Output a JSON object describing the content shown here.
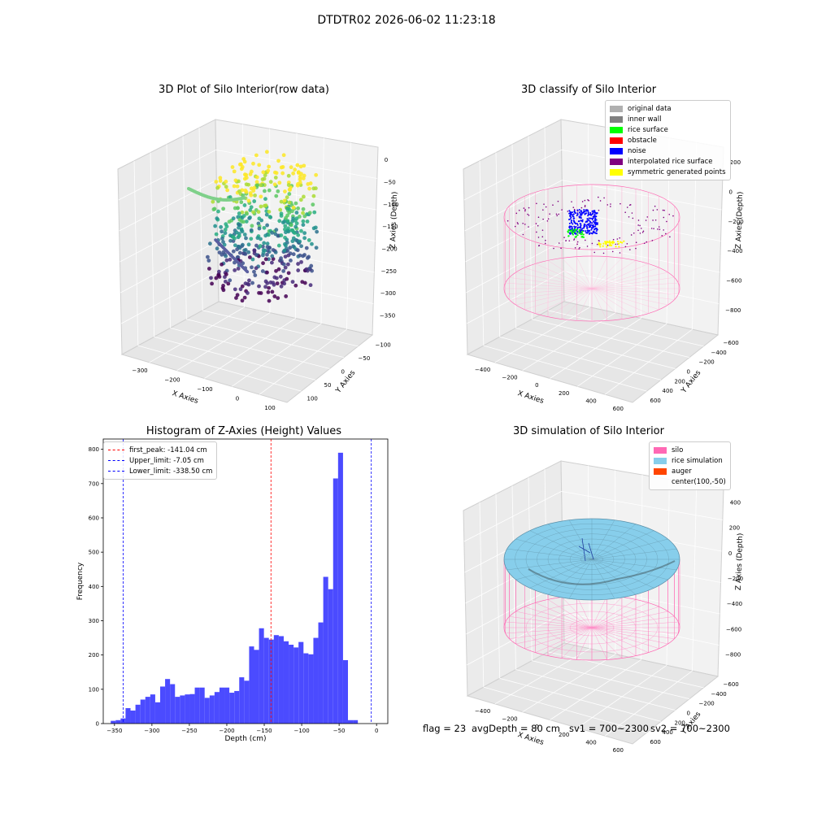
{
  "figure_title": "DTDTR02 2026-06-02 11:23:18",
  "footer": {
    "flag": "flag = 23",
    "avgDepth": "avgDepth = 80 cm",
    "sv1": "sv1 = 700~2300",
    "sv2": "sv2 = 700~2300"
  },
  "chart_data": [
    {
      "type": "scatter",
      "title": "3D Plot of Silo Interior(row data)",
      "xlabel": "X Axies",
      "ylabel": "Y Axies",
      "zlabel": "Z Axies (Depth)",
      "x_ticks": [
        "−300",
        "−200",
        "−100",
        "0",
        "100"
      ],
      "y_ticks": [
        "100",
        "50",
        "0",
        "−50",
        "−100"
      ],
      "z_ticks": [
        "0",
        "−50",
        "−100",
        "−150",
        "−200",
        "−250",
        "−300",
        "−350"
      ],
      "xlim": [
        -330,
        150
      ],
      "ylim": [
        -120,
        120
      ],
      "zlim": [
        -370,
        10
      ],
      "colormap": "viridis",
      "grid": true
    },
    {
      "type": "scatter",
      "title": "3D classify of Silo Interior",
      "xlabel": "X Axies",
      "ylabel": "Y Axies",
      "zlabel": "Z Axies (Depth)",
      "x_ticks": [
        "−400",
        "−200",
        "0",
        "200",
        "400",
        "600"
      ],
      "y_ticks": [
        "600",
        "400",
        "200",
        "0",
        "−200",
        "−400",
        "−600"
      ],
      "z_ticks": [
        "200",
        "0",
        "−200",
        "−400",
        "−600",
        "−800"
      ],
      "legend_position": "top-right",
      "legend": [
        {
          "label": "original data",
          "color": "#b0b0b0"
        },
        {
          "label": "inner wall",
          "color": "#808080"
        },
        {
          "label": "rice surface",
          "color": "#00ff00"
        },
        {
          "label": "obstacle",
          "color": "#ff0000"
        },
        {
          "label": "noise",
          "color": "#0000ff"
        },
        {
          "label": "interpolated rice surface",
          "color": "#800080"
        },
        {
          "label": "symmetric generated points",
          "color": "#ffff00"
        }
      ],
      "grid": true
    },
    {
      "type": "bar",
      "title": "Histogram of Z-Axies (Height) Values",
      "xlabel": "Depth (cm)",
      "ylabel": "Frequency",
      "xlim": [
        -365,
        15
      ],
      "ylim": [
        0,
        830
      ],
      "x_ticks": [
        "−350",
        "−300",
        "−250",
        "−200",
        "−150",
        "−100",
        "−50",
        "0"
      ],
      "y_ticks": [
        "0",
        "100",
        "200",
        "300",
        "400",
        "500",
        "600",
        "700",
        "800"
      ],
      "bin_start": -355,
      "bin_width": 6.6,
      "values": [
        8,
        10,
        15,
        45,
        38,
        55,
        70,
        78,
        85,
        62,
        108,
        130,
        115,
        78,
        82,
        85,
        86,
        105,
        105,
        75,
        82,
        92,
        105,
        105,
        90,
        95,
        135,
        125,
        225,
        215,
        278,
        250,
        245,
        258,
        255,
        240,
        230,
        222,
        238,
        205,
        202,
        250,
        295,
        428,
        392,
        715,
        790,
        185,
        10,
        10
      ],
      "bar_color": "#4b4bff",
      "lines": [
        {
          "label": "first_peak: -141.04 cm",
          "x": -141.04,
          "color": "#ff0000"
        },
        {
          "label": "Upper_limit: -7.05 cm",
          "x": -7.05,
          "color": "#0000ff"
        },
        {
          "label": "Lower_limit: -338.50 cm",
          "x": -338.5,
          "color": "#0000ff"
        }
      ],
      "legend_position": "top-left"
    },
    {
      "type": "area",
      "title": "3D simulation of Silo Interior",
      "xlabel": "X Axies",
      "ylabel": "Y Axies",
      "zlabel": "Z Axies (Depth)",
      "x_ticks": [
        "−400",
        "−200",
        "0",
        "200",
        "400",
        "600"
      ],
      "y_ticks": [
        "600",
        "400",
        "200",
        "0",
        "−200",
        "−400",
        "−600"
      ],
      "z_ticks": [
        "400",
        "200",
        "0",
        "−200",
        "−400",
        "−600",
        "−800"
      ],
      "legend_position": "top-right",
      "legend": [
        {
          "label": "silo",
          "color": "#ff69b4"
        },
        {
          "label": "rice simulation",
          "color": "#87ceeb"
        },
        {
          "label": "auger",
          "color": "#ff4500"
        },
        {
          "label": "center(100,-50)",
          "color": ""
        }
      ],
      "grid": true
    }
  ]
}
